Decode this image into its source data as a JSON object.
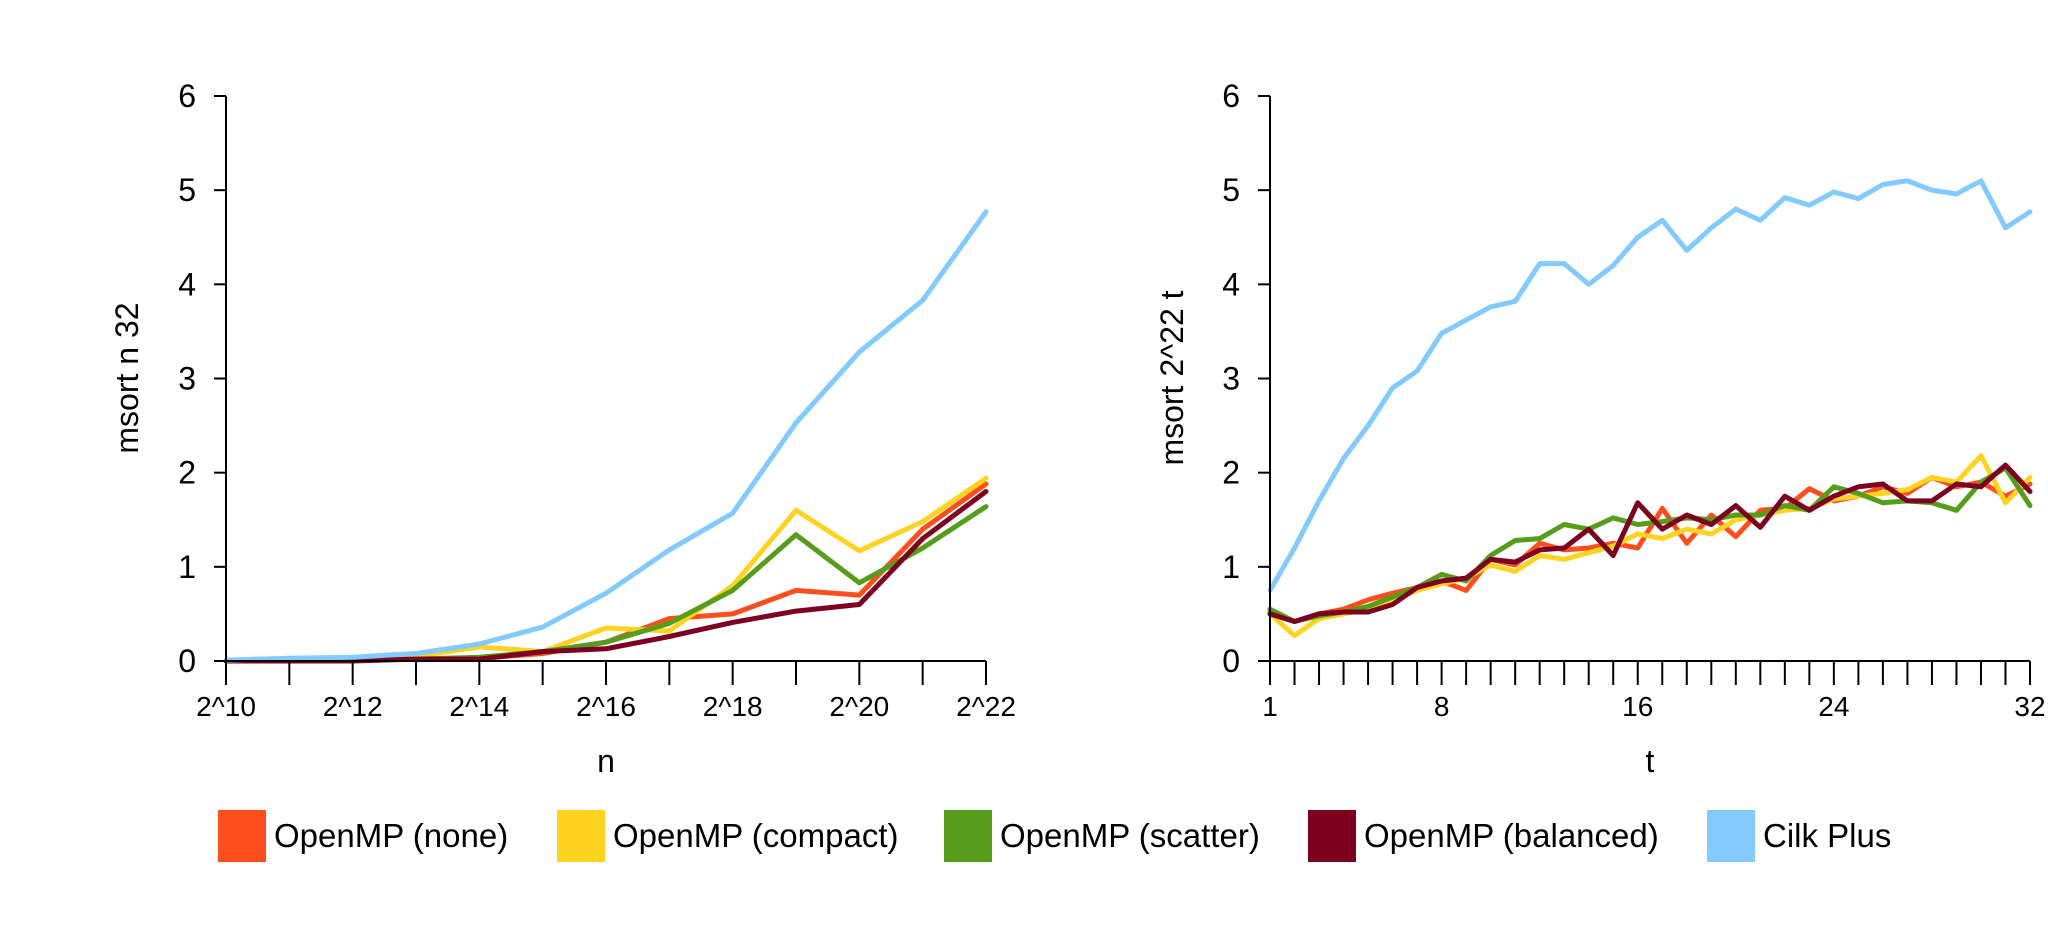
{
  "colors": {
    "openmp_none": "#ff4e1e",
    "openmp_compact": "#ffd320",
    "openmp_scatter": "#579d1c",
    "openmp_balanced": "#7e0021",
    "cilk_plus": "#83caff"
  },
  "legend": [
    {
      "label": "OpenMP (none)",
      "color": "#ff4e1e"
    },
    {
      "label": "OpenMP (compact)",
      "color": "#ffd320"
    },
    {
      "label": "OpenMP (scatter)",
      "color": "#579d1c"
    },
    {
      "label": "OpenMP (balanced)",
      "color": "#7e0021"
    },
    {
      "label": "Cilk Plus",
      "color": "#83caff"
    }
  ],
  "chart_data": [
    {
      "type": "line",
      "xlabel": "n",
      "ylabel": "msort n 32",
      "ylim": [
        0,
        6
      ],
      "yticks": [
        0,
        1,
        2,
        3,
        4,
        5,
        6
      ],
      "x": [
        10,
        11,
        12,
        13,
        14,
        15,
        16,
        17,
        18,
        19,
        20,
        21,
        22
      ],
      "xlim": [
        10,
        22
      ],
      "xticks": [
        {
          "value": 10,
          "label": "2^10"
        },
        {
          "value": 12,
          "label": "2^12"
        },
        {
          "value": 14,
          "label": "2^14"
        },
        {
          "value": 16,
          "label": "2^16"
        },
        {
          "value": 18,
          "label": "2^18"
        },
        {
          "value": 20,
          "label": "2^20"
        },
        {
          "value": 22,
          "label": "2^22"
        }
      ],
      "minor_xticks": [
        11,
        13,
        15,
        17,
        19,
        21
      ],
      "series": [
        {
          "name": "OpenMP (none)",
          "color": "#ff4e1e",
          "values": [
            0.0,
            0.01,
            0.01,
            0.02,
            0.03,
            0.08,
            0.2,
            0.45,
            0.5,
            0.75,
            0.7,
            1.4,
            1.88
          ]
        },
        {
          "name": "OpenMP (compact)",
          "color": "#ffd320",
          "values": [
            0.0,
            0.01,
            0.02,
            0.05,
            0.15,
            0.1,
            0.35,
            0.32,
            0.8,
            1.6,
            1.17,
            1.48,
            1.94
          ]
        },
        {
          "name": "OpenMP (scatter)",
          "color": "#579d1c",
          "values": [
            0.0,
            0.0,
            0.01,
            0.02,
            0.04,
            0.1,
            0.2,
            0.4,
            0.75,
            1.34,
            0.83,
            1.2,
            1.64
          ]
        },
        {
          "name": "OpenMP (balanced)",
          "color": "#7e0021",
          "values": [
            0.0,
            0.0,
            0.0,
            0.02,
            0.02,
            0.1,
            0.13,
            0.26,
            0.41,
            0.53,
            0.6,
            1.3,
            1.8
          ]
        },
        {
          "name": "Cilk Plus",
          "color": "#83caff",
          "values": [
            0.01,
            0.03,
            0.04,
            0.08,
            0.18,
            0.36,
            0.72,
            1.18,
            1.57,
            2.53,
            3.28,
            3.83,
            4.77
          ]
        }
      ]
    },
    {
      "type": "line",
      "xlabel": "t",
      "ylabel": "msort 2^22 t",
      "ylim": [
        0,
        6
      ],
      "yticks": [
        0,
        1,
        2,
        3,
        4,
        5,
        6
      ],
      "x": [
        1,
        2,
        3,
        4,
        5,
        6,
        7,
        8,
        9,
        10,
        11,
        12,
        13,
        14,
        15,
        16,
        17,
        18,
        19,
        20,
        21,
        22,
        23,
        24,
        25,
        26,
        27,
        28,
        29,
        30,
        31,
        32
      ],
      "xlim": [
        1,
        32
      ],
      "xticks": [
        {
          "value": 1,
          "label": "1"
        },
        {
          "value": 8,
          "label": "8"
        },
        {
          "value": 16,
          "label": "16"
        },
        {
          "value": 24,
          "label": "24"
        },
        {
          "value": 32,
          "label": "32"
        }
      ],
      "minor_xticks": [
        2,
        3,
        4,
        5,
        6,
        7,
        9,
        10,
        11,
        12,
        13,
        14,
        15,
        17,
        18,
        19,
        20,
        21,
        22,
        23,
        25,
        26,
        27,
        28,
        29,
        30,
        31
      ],
      "series": [
        {
          "name": "OpenMP (none)",
          "color": "#ff4e1e",
          "values": [
            0.52,
            0.42,
            0.5,
            0.55,
            0.65,
            0.72,
            0.78,
            0.85,
            0.75,
            1.08,
            1.02,
            1.25,
            1.18,
            1.2,
            1.25,
            1.2,
            1.62,
            1.25,
            1.55,
            1.32,
            1.6,
            1.62,
            1.83,
            1.7,
            1.75,
            1.85,
            1.78,
            1.95,
            1.85,
            1.9,
            1.75,
            1.88
          ]
        },
        {
          "name": "OpenMP (compact)",
          "color": "#ffd320",
          "values": [
            0.5,
            0.27,
            0.45,
            0.5,
            0.55,
            0.65,
            0.75,
            0.82,
            0.88,
            1.02,
            0.95,
            1.12,
            1.08,
            1.15,
            1.22,
            1.35,
            1.3,
            1.4,
            1.35,
            1.5,
            1.55,
            1.6,
            1.62,
            1.72,
            1.75,
            1.78,
            1.82,
            1.95,
            1.9,
            2.18,
            1.68,
            1.95
          ]
        },
        {
          "name": "OpenMP (scatter)",
          "color": "#579d1c",
          "values": [
            0.55,
            0.42,
            0.48,
            0.52,
            0.58,
            0.68,
            0.78,
            0.92,
            0.85,
            1.12,
            1.28,
            1.3,
            1.45,
            1.4,
            1.52,
            1.45,
            1.48,
            1.52,
            1.5,
            1.55,
            1.55,
            1.65,
            1.6,
            1.85,
            1.78,
            1.68,
            1.7,
            1.68,
            1.6,
            1.9,
            2.05,
            1.65
          ]
        },
        {
          "name": "OpenMP (balanced)",
          "color": "#7e0021",
          "values": [
            0.5,
            0.42,
            0.5,
            0.52,
            0.52,
            0.6,
            0.78,
            0.85,
            0.88,
            1.08,
            1.05,
            1.18,
            1.2,
            1.4,
            1.12,
            1.68,
            1.4,
            1.55,
            1.45,
            1.65,
            1.42,
            1.75,
            1.6,
            1.75,
            1.85,
            1.88,
            1.7,
            1.7,
            1.88,
            1.85,
            2.08,
            1.8
          ]
        },
        {
          "name": "Cilk Plus",
          "color": "#83caff",
          "values": [
            0.75,
            1.2,
            1.7,
            2.15,
            2.5,
            2.9,
            3.08,
            3.48,
            3.62,
            3.76,
            3.82,
            4.22,
            4.22,
            4.0,
            4.2,
            4.5,
            4.68,
            4.36,
            4.6,
            4.8,
            4.68,
            4.92,
            4.84,
            4.98,
            4.91,
            5.06,
            5.1,
            5.0,
            4.96,
            5.1,
            4.6,
            4.77
          ]
        }
      ]
    }
  ]
}
